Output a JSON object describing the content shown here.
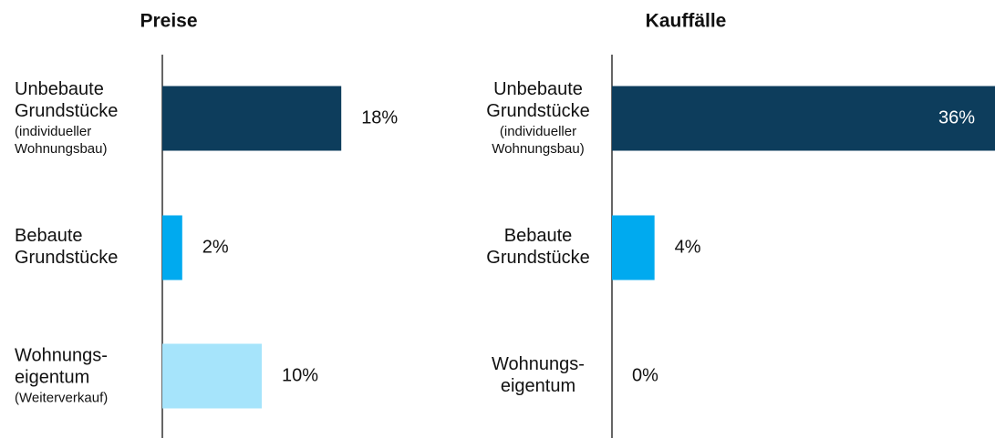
{
  "chart_data": [
    {
      "type": "bar",
      "title": "Preise",
      "categories": [
        "Unbebaute\nGrundstücke",
        "Bebaute\nGrundstücke",
        "Wohnungs-\neigentum"
      ],
      "category_notes": [
        "(individueller\nWohnungsbau)",
        null,
        "(Weiterverkauf)"
      ],
      "values": [
        18,
        2,
        10
      ],
      "value_labels": [
        "18%",
        "2%",
        "10%"
      ],
      "colors": [
        "#0d3d5c",
        "#00aaef",
        "#a6e4fb"
      ],
      "xlim": [
        0,
        40
      ]
    },
    {
      "type": "bar",
      "title": "Kauffälle",
      "categories": [
        "Unbebaute\nGrundstücke",
        "Bebaute\nGrundstücke",
        "Wohnungs-\neigentum"
      ],
      "category_notes": [
        "(individueller\nWohnungsbau)",
        null,
        null
      ],
      "values": [
        36,
        4,
        0
      ],
      "value_labels": [
        "36%",
        "4%",
        "0%"
      ],
      "colors": [
        "#0d3d5c",
        "#00aaef",
        "#a6e4fb"
      ],
      "xlim": [
        0,
        36
      ]
    }
  ]
}
